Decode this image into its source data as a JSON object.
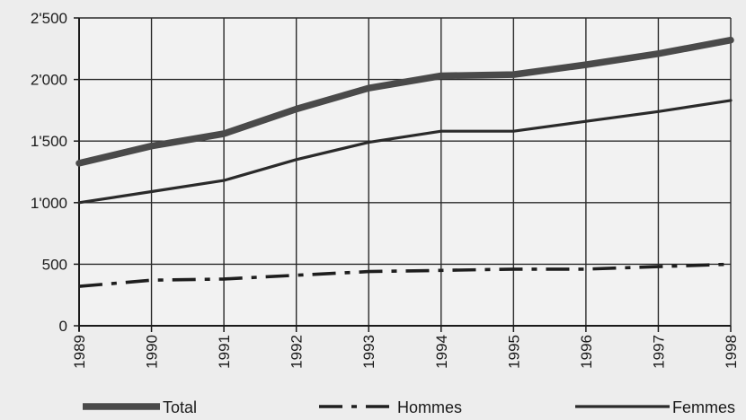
{
  "chart_data": {
    "type": "line",
    "title": "",
    "xlabel": "",
    "ylabel": "",
    "x": [
      "1989",
      "1990",
      "1991",
      "1992",
      "1993",
      "1994",
      "1995",
      "1996",
      "1997",
      "1998"
    ],
    "ylim": [
      0,
      2500
    ],
    "yticks": [
      0,
      500,
      1000,
      1500,
      2000,
      2500
    ],
    "ytick_labels": [
      "0",
      "500",
      "1'000",
      "1'500",
      "2'000",
      "2'500"
    ],
    "grid": true,
    "legend_position": "bottom",
    "series": [
      {
        "name": "Total",
        "style": "thick-solid",
        "color": "#4a4a4a",
        "values": [
          1320,
          1460,
          1560,
          1760,
          1930,
          2030,
          2040,
          2120,
          2210,
          2320
        ]
      },
      {
        "name": "Hommes",
        "style": "dash-dot",
        "color": "#1e1e1e",
        "values": [
          320,
          370,
          380,
          410,
          440,
          450,
          460,
          460,
          480,
          500
        ]
      },
      {
        "name": "Femmes",
        "style": "solid",
        "color": "#2a2a2a",
        "values": [
          1000,
          1090,
          1180,
          1350,
          1490,
          1580,
          1580,
          1660,
          1740,
          1830
        ]
      }
    ]
  }
}
